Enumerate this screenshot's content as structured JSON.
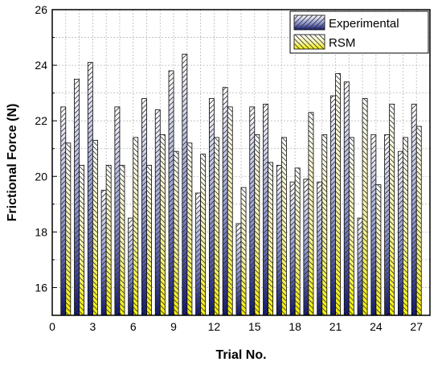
{
  "chart_data": {
    "type": "bar",
    "title": "",
    "xlabel": "Trial No.",
    "ylabel": "Frictional Force (N)",
    "xlim": [
      0,
      28
    ],
    "ylim": [
      15,
      26
    ],
    "xticks": [
      0,
      3,
      6,
      9,
      12,
      15,
      18,
      21,
      24,
      27
    ],
    "yticks": [
      16,
      18,
      20,
      22,
      24,
      26
    ],
    "grid": true,
    "legend_position": "top-right",
    "categories": [
      1,
      2,
      3,
      4,
      5,
      6,
      7,
      8,
      9,
      10,
      11,
      12,
      13,
      14,
      15,
      16,
      17,
      18,
      19,
      20,
      21,
      22,
      23,
      24,
      25,
      26,
      27
    ],
    "series": [
      {
        "name": "Experimental",
        "color": "#1c1f7a",
        "values": [
          22.5,
          23.5,
          24.1,
          19.5,
          22.5,
          18.5,
          22.8,
          22.4,
          23.8,
          24.4,
          19.4,
          22.8,
          23.2,
          18.3,
          22.5,
          22.6,
          20.4,
          19.8,
          19.9,
          19.8,
          22.9,
          23.4,
          18.5,
          21.5,
          21.5,
          20.9,
          22.6
        ]
      },
      {
        "name": "RSM",
        "color": "#f4f000",
        "values": [
          21.2,
          20.4,
          21.3,
          20.4,
          20.4,
          21.4,
          20.4,
          21.5,
          20.9,
          21.2,
          20.8,
          21.4,
          22.5,
          19.6,
          21.5,
          20.5,
          21.4,
          20.3,
          22.3,
          21.5,
          23.7,
          21.4,
          22.8,
          19.7,
          22.6,
          21.4,
          21.8
        ]
      }
    ]
  }
}
